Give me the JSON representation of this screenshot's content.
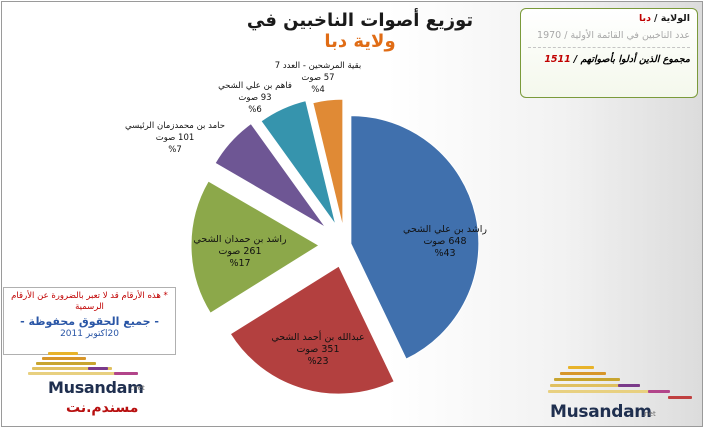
{
  "title": {
    "prefix": "توزيع أصوات الناخبين في",
    "highlight": "ولاية دبا"
  },
  "info": {
    "state_label": "الولاية /",
    "state_value": "دبا",
    "voters_label": "عدد الناخبين في القائمة الأولية /",
    "voters_value": "1970",
    "votes_label": "مجموع الذين أدلوا بأصواتهم /",
    "votes_value": "1511"
  },
  "note": {
    "disclaimer": "* هذه الأرقام قد لا تعبر بالضرورة عن الأرقام الرسمية",
    "rights": "- جميع الحقوق محفوظة -",
    "date": "20اكتوبر 2011"
  },
  "logos": {
    "latin": "Musandam",
    "net": ".net",
    "arabic": "مسندم.نت"
  },
  "chart_data": {
    "type": "pie",
    "title": "توزيع أصوات الناخبين في ولاية دبا",
    "exploded": true,
    "slices": [
      {
        "name": "راشد بن علي الشحي",
        "votes": 648,
        "votes_label": "648 صوت",
        "percent": 43,
        "percent_label": "%43",
        "color": "#4070ad"
      },
      {
        "name": "عبدالله بن أحمد الشحي",
        "votes": 351,
        "votes_label": "351 صوت",
        "percent": 23,
        "percent_label": "%23",
        "color": "#b3403f"
      },
      {
        "name": "راشد بن حمدان الشحي",
        "votes": 261,
        "votes_label": "261 صوت",
        "percent": 17,
        "percent_label": "%17",
        "color": "#8ca84a"
      },
      {
        "name": "حامد بن محمدزمان الرئيسي",
        "votes": 101,
        "votes_label": "101 صوت",
        "percent": 7,
        "percent_label": "%7",
        "color": "#6e5694"
      },
      {
        "name": "فاهم بن علي الشحي",
        "votes": 93,
        "votes_label": "93 صوت",
        "percent": 6,
        "percent_label": "%6",
        "color": "#3694ad"
      },
      {
        "name": "بقية المرشحين - العدد 7",
        "votes": 57,
        "votes_label": "57 صوت",
        "percent": 4,
        "percent_label": "%4",
        "color": "#e08a35"
      }
    ]
  }
}
